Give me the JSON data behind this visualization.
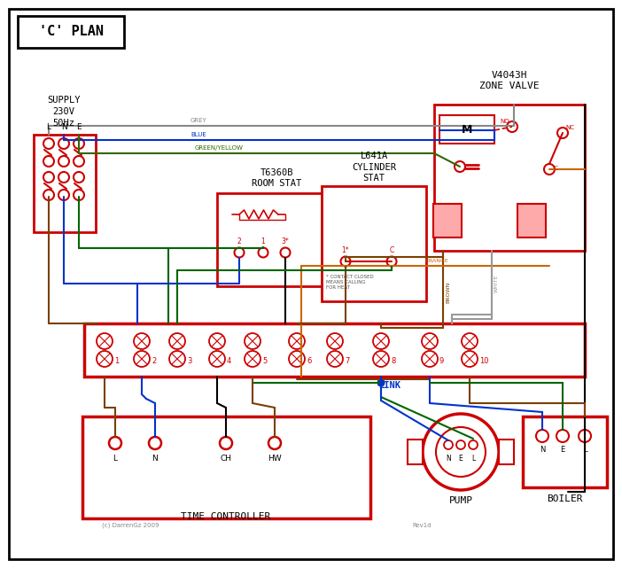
{
  "title": "'C' PLAN",
  "red": "#cc0000",
  "blue": "#0033cc",
  "green": "#006600",
  "brown": "#7B3F00",
  "grey": "#888888",
  "orange": "#cc6600",
  "black": "#000000",
  "white_wire": "#999999",
  "green_yellow": "#336600",
  "supply_text": "SUPPLY\n230V\n50Hz",
  "zone_valve_text": "V4043H\nZONE VALVE",
  "room_stat_text": "T6360B\nROOM STAT",
  "cyl_stat_text": "L641A\nCYLINDER\nSTAT",
  "time_ctrl_text": "TIME CONTROLLER",
  "pump_text": "PUMP",
  "boiler_text": "BOILER",
  "link_text": "LINK",
  "watermark": "(c) DarrenGz 2009",
  "revtext": "Rev1d"
}
